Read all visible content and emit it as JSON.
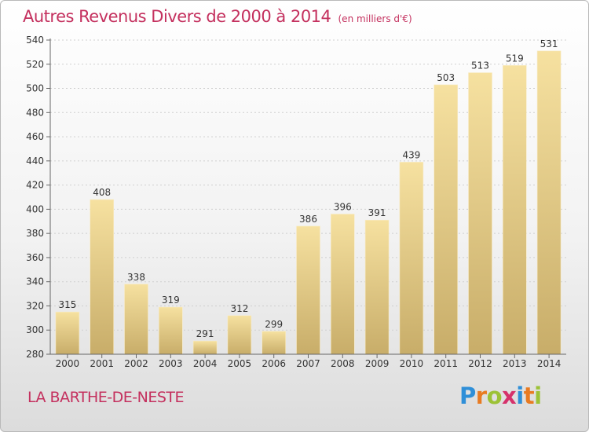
{
  "chart_data": {
    "type": "bar",
    "title": "Autres Revenus Divers de 2000 à 2014",
    "subtitle": "(en milliers d'€)",
    "categories": [
      "2000",
      "2001",
      "2002",
      "2003",
      "2004",
      "2005",
      "2006",
      "2007",
      "2008",
      "2009",
      "2010",
      "2011",
      "2012",
      "2013",
      "2014"
    ],
    "values": [
      315,
      408,
      338,
      319,
      291,
      312,
      299,
      386,
      396,
      391,
      439,
      503,
      513,
      519,
      531
    ],
    "ylim": [
      280,
      540
    ],
    "yticks": [
      280,
      300,
      320,
      340,
      360,
      380,
      400,
      420,
      440,
      460,
      480,
      500,
      520,
      540
    ],
    "grid": true,
    "colors": {
      "bar_light": "#f6e1a0",
      "bar_dark": "#c8ad69",
      "title": "#c4305e"
    }
  },
  "commune": "LA BARTHE-DE-NESTE",
  "logo": {
    "text": "Proxiti",
    "letters": [
      {
        "ch": "P",
        "color": "#2f8fd8"
      },
      {
        "ch": "r",
        "color": "#e87b22"
      },
      {
        "ch": "o",
        "color": "#9cc236"
      },
      {
        "ch": "x",
        "color": "#d6326b"
      },
      {
        "ch": "i",
        "color": "#2f8fd8"
      },
      {
        "ch": "t",
        "color": "#e87b22"
      },
      {
        "ch": "i",
        "color": "#9cc236"
      }
    ]
  }
}
